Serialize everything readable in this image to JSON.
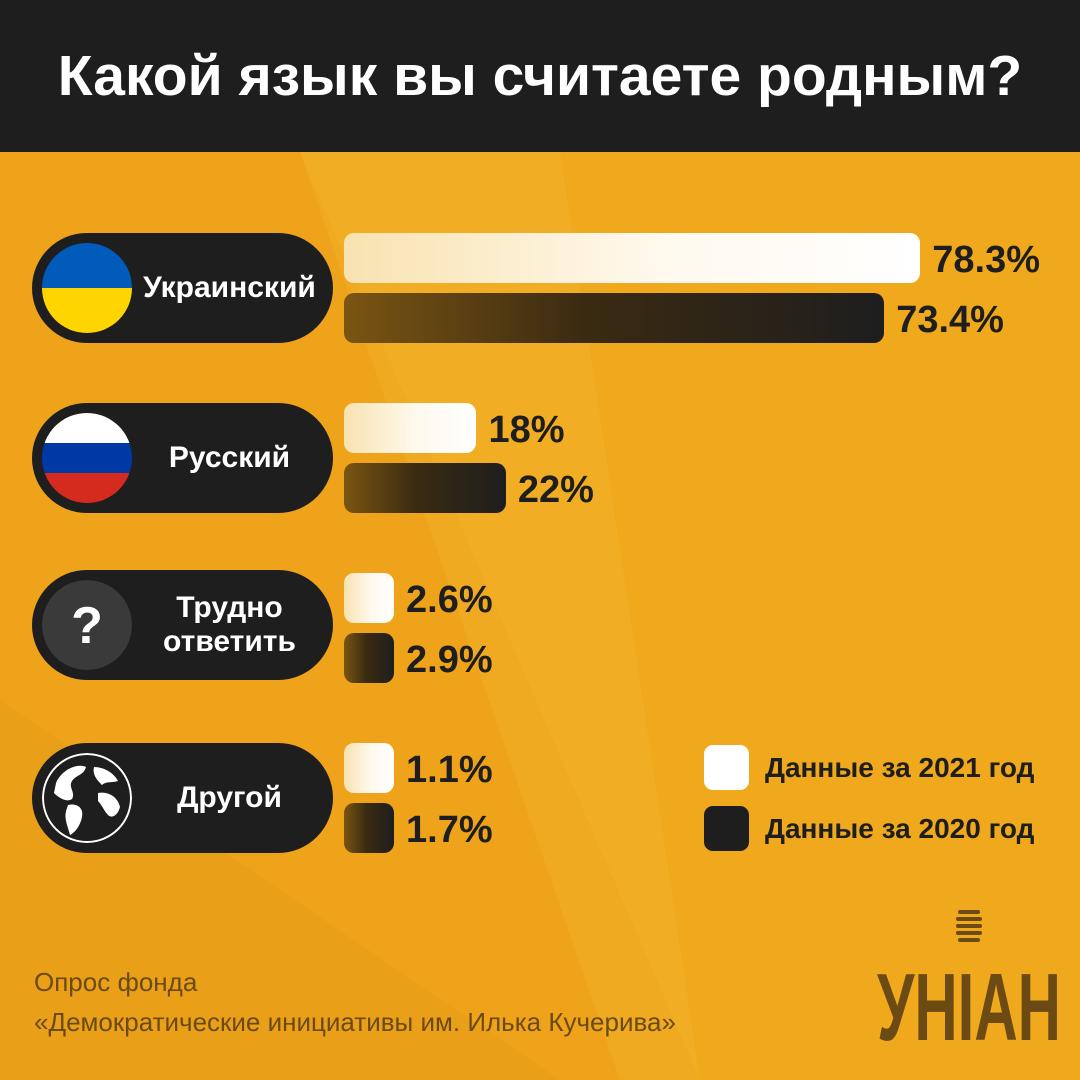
{
  "title": "Какой язык вы считаете родным?",
  "colors": {
    "background": "#eea31a",
    "dark": "#1e1e1e",
    "bar_2021": "#ffffff",
    "bar_2020": "#1e1e1e",
    "ukraine_blue": "#005bbb",
    "ukraine_yellow": "#ffd500",
    "russia_white": "#ffffff",
    "russia_blue": "#0039a6",
    "russia_red": "#d52b1e"
  },
  "chart_data": {
    "type": "bar",
    "orientation": "horizontal",
    "title": "Какой язык вы считаете родным?",
    "categories": [
      {
        "label": "Украинский",
        "icon": "ukraine-flag-icon"
      },
      {
        "label": "Русский",
        "icon": "russia-flag-icon"
      },
      {
        "label": "Трудно ответить",
        "label_lines": [
          "Трудно",
          "ответить"
        ],
        "icon": "question-mark-icon"
      },
      {
        "label": "Другой",
        "icon": "globe-icon"
      }
    ],
    "series": [
      {
        "name": "Данные за 2021 год",
        "values": [
          78.3,
          18,
          2.6,
          1.1
        ],
        "labels": [
          "78.3%",
          "18%",
          "2.6%",
          "1.1%"
        ]
      },
      {
        "name": "Данные за 2020 год",
        "values": [
          73.4,
          22,
          2.9,
          1.7
        ],
        "labels": [
          "73.4%",
          "22%",
          "2.9%",
          "1.7%"
        ]
      }
    ],
    "unit": "%",
    "legend_position": "bottom-right",
    "grid": false
  },
  "source": {
    "line1": "Опрос фонда",
    "line2": "«Демократические инициативы им. Илька Кучерива»"
  },
  "logo": {
    "text": "УНІАН"
  }
}
